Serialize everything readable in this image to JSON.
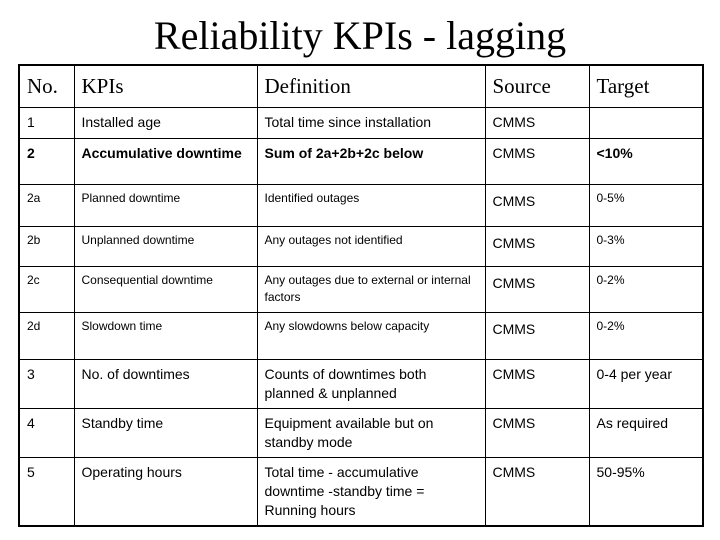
{
  "header": {
    "title": "Reliability KPIs - lagging"
  },
  "table": {
    "columns": [
      "No.",
      "KPIs",
      "Definition",
      "Source",
      "Target"
    ],
    "rows": [
      [
        "1",
        "Installed age",
        "Total time since installation",
        "CMMS",
        null
      ],
      [
        "2",
        "Accumulative downtime",
        "Sum of 2a+2b+2c below",
        "CMMS",
        "<10%"
      ],
      [
        "2a",
        "Planned downtime",
        "Identified outages",
        "CMMS",
        "0-5%"
      ],
      [
        "2b",
        "Unplanned downtime",
        "Any outages not identified",
        "CMMS",
        "0-3%"
      ],
      [
        "2c",
        "Consequential downtime",
        "Any outages due to external or internal factors",
        "CMMS",
        "0-2%"
      ],
      [
        "2d",
        "Slowdown time",
        "Any slowdowns below capacity",
        "CMMS",
        "0-2%"
      ],
      [
        "3",
        "No. of downtimes",
        "Counts of downtimes both planned & unplanned",
        "CMMS",
        "0-4 per year"
      ],
      [
        "4",
        "Standby time",
        "Equipment available but on standby mode",
        "CMMS",
        "As required"
      ],
      [
        "5",
        "Operating hours",
        "Total time - accumulative downtime -standby time = Running hours",
        "CMMS",
        "50-95%"
      ]
    ]
  }
}
